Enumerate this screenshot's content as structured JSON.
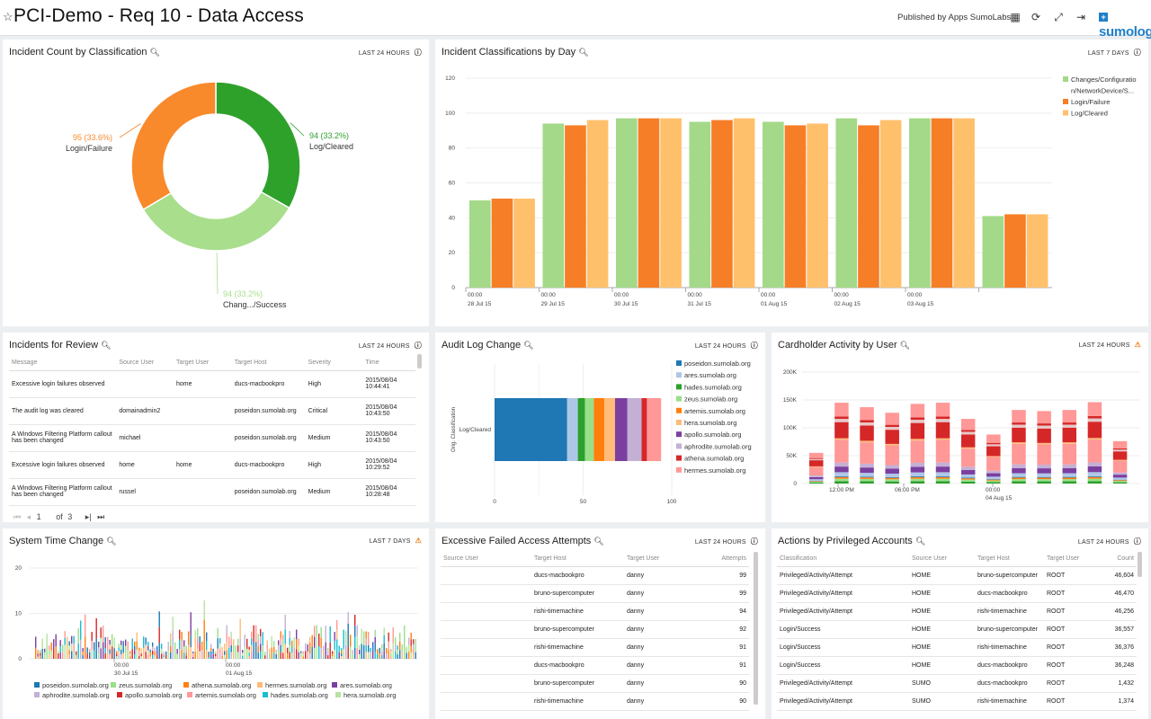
{
  "header": {
    "title": "PCI-Demo - Req 10 - Data Access",
    "published": "Published by Apps SumoLabs",
    "logo": "sumologic"
  },
  "colors": {
    "c_changes": "#a3d989",
    "c_login": "#f67e27",
    "c_logcl": "#ffc06c"
  },
  "panels": {
    "p1": {
      "title": "Incident Count by Classification",
      "range": "LAST 24 HOURS"
    },
    "p2": {
      "title": "Incident Classifications by Day",
      "range": "LAST 7 DAYS"
    },
    "p3": {
      "title": "Incidents for Review",
      "range": "LAST 24 HOURS"
    },
    "p4": {
      "title": "Audit Log Change",
      "range": "LAST 24 HOURS"
    },
    "p5": {
      "title": "Cardholder Activity by User",
      "range": "LAST 24 HOURS"
    },
    "p6": {
      "title": "System Time Change",
      "range": "LAST 7 DAYS"
    },
    "p7": {
      "title": "Excessive Failed Access Attempts",
      "range": "LAST 24 HOURS"
    },
    "p8": {
      "title": "Actions by Privileged Accounts",
      "range": "LAST 24 HOURS"
    }
  },
  "chart_data": [
    {
      "type": "pie",
      "id": "donut",
      "slices": [
        {
          "label": "Log/Cleared",
          "value": 94,
          "pct": "94 (33.2%)",
          "color": "#2ea12b"
        },
        {
          "label": "Chang.../Success",
          "value": 94,
          "pct": "94 (33.2%)",
          "color": "#a8de8c"
        },
        {
          "label": "Login/Failure",
          "value": 95,
          "pct": "95 (33.6%)",
          "color": "#f88a2c"
        }
      ]
    },
    {
      "type": "bar",
      "id": "daily",
      "categories": [
        "00:00\n28 Jul 15",
        "00:00\n29 Jul 15",
        "00:00\n30 Jul 15",
        "00:00\n31 Jul 15",
        "00:00\n01 Aug 15",
        "00:00\n02 Aug 15",
        "00:00\n03 Aug 15",
        ""
      ],
      "series": [
        {
          "name": "Changes/Configuration/NetworkDevice/S...",
          "values": [
            50,
            94,
            97,
            95,
            95,
            97,
            97,
            41
          ],
          "color": "#a3d989"
        },
        {
          "name": "Login/Failure",
          "values": [
            51,
            93,
            97,
            96,
            93,
            93,
            97,
            42
          ],
          "color": "#f67e27"
        },
        {
          "name": "Log/Cleared",
          "values": [
            51,
            96,
            97,
            97,
            94,
            96,
            97,
            42
          ],
          "color": "#ffc06c"
        }
      ],
      "legend_lines": [
        "Changes/Configuratio",
        "n/NetworkDevice/S...",
        "Login/Failure",
        "Log/Cleared"
      ],
      "yticks": [
        "0",
        "20",
        "40",
        "60",
        "80",
        "100",
        "120"
      ],
      "ylim": [
        0,
        120
      ]
    },
    {
      "type": "bar",
      "id": "audit",
      "orientation": "horizontal",
      "category": "Log/Cleared",
      "ylabel": "Orig. Classification",
      "segments": [
        {
          "name": "poseidon.sumolab.org",
          "value": 41,
          "color": "#1f77b4"
        },
        {
          "name": "ares.sumolab.org",
          "value": 6,
          "color": "#aec7e8"
        },
        {
          "name": "hades.sumolab.org",
          "value": 4,
          "color": "#2ca02c"
        },
        {
          "name": "zeus.sumolab.org",
          "value": 5,
          "color": "#98df8a"
        },
        {
          "name": "artemis.sumolab.org",
          "value": 6,
          "color": "#ff7f0e"
        },
        {
          "name": "hera.sumolab.org",
          "value": 6,
          "color": "#ffbb78"
        },
        {
          "name": "apollo.sumolab.org",
          "value": 7,
          "color": "#7b3fa0"
        },
        {
          "name": "aphrodite.sumolab.org",
          "value": 8,
          "color": "#c5b0d5"
        },
        {
          "name": "athena.sumolab.org",
          "value": 3,
          "color": "#d62728"
        },
        {
          "name": "hermes.sumolab.org",
          "value": 8,
          "color": "#ff9896"
        }
      ],
      "xticks": [
        "0",
        "50",
        "100"
      ],
      "xlim": [
        0,
        100
      ]
    },
    {
      "type": "bar",
      "id": "cardholder",
      "stacked": true,
      "totals": [
        55,
        145,
        137,
        127,
        143,
        145,
        116,
        88,
        132,
        130,
        132,
        146,
        76
      ],
      "xticks": [
        "12:00 PM",
        "06:00 PM",
        "00:00\n04 Aug 15"
      ],
      "yticks": [
        "0",
        "50K",
        "100K",
        "150K",
        "200K"
      ],
      "ylim": [
        0,
        200000
      ]
    },
    {
      "type": "bar",
      "id": "systime",
      "xticks": [
        "00:00\n30 Jul 15",
        "00:00\n01 Aug 15"
      ],
      "yticks": [
        "0",
        "10",
        "20"
      ],
      "ylim": [
        0,
        20
      ],
      "legend": [
        {
          "name": "poseidon.sumolab.org",
          "color": "#1f77b4"
        },
        {
          "name": "zeus.sumolab.org",
          "color": "#98df8a"
        },
        {
          "name": "athena.sumolab.org",
          "color": "#ff7f0e"
        },
        {
          "name": "hermes.sumolab.org",
          "color": "#ffbb78"
        },
        {
          "name": "ares.sumolab.org",
          "color": "#7b3fa0"
        },
        {
          "name": "aphrodite.sumolab.org",
          "color": "#c5b0d5"
        },
        {
          "name": "apollo.sumolab.org",
          "color": "#d62728"
        },
        {
          "name": "artemis.sumolab.org",
          "color": "#ff9896"
        },
        {
          "name": "hades.sumolab.org",
          "color": "#17becf"
        },
        {
          "name": "hera.sumolab.org",
          "color": "#b5e3a0"
        }
      ]
    }
  ],
  "incidents": {
    "headers": [
      "Message",
      "Source User",
      "Target User",
      "Target Host",
      "Severity",
      "Time"
    ],
    "rows": [
      [
        "Excessive login failures observed",
        "",
        "home",
        "ducs-macbookpro",
        "High",
        "2015/08/04 10:44:41"
      ],
      [
        "The audit log was cleared",
        "domainadmin2",
        "",
        "poseidon.sumolab.org",
        "Critical",
        "2015/08/04 10:43:50"
      ],
      [
        "A Windows Filtering Platform callout has been changed",
        "michael",
        "",
        "poseidon.sumolab.org",
        "Medium",
        "2015/08/04 10:43:50"
      ],
      [
        "Excessive login failures observed",
        "home",
        "home",
        "ducs-macbookpro",
        "High",
        "2015/08/04 10:29:52"
      ],
      [
        "A Windows Filtering Platform callout has been changed",
        "russel",
        "",
        "poseidon.sumolab.org",
        "Medium",
        "2015/08/04 10:28:48"
      ]
    ],
    "pager": {
      "page": "1",
      "of": "of",
      "total": "3"
    }
  },
  "failed": {
    "headers": [
      "Source User",
      "Target Host",
      "Target User",
      "Attempts"
    ],
    "rows": [
      [
        "",
        "ducs-macbookpro",
        "danny",
        "99"
      ],
      [
        "",
        "bruno-supercomputer",
        "danny",
        "99"
      ],
      [
        "",
        "rishi-timemachine",
        "danny",
        "94"
      ],
      [
        "",
        "bruno-supercomputer",
        "danny",
        "92"
      ],
      [
        "",
        "rishi-timemachine",
        "danny",
        "91"
      ],
      [
        "",
        "ducs-macbookpro",
        "danny",
        "91"
      ],
      [
        "",
        "bruno-supercomputer",
        "danny",
        "90"
      ],
      [
        "",
        "rishi-timemachine",
        "danny",
        "90"
      ]
    ]
  },
  "priv": {
    "headers": [
      "Classification",
      "Source User",
      "Target Host",
      "Target User",
      "Count"
    ],
    "rows": [
      [
        "Privileged/Activity/Attempt",
        "HOME",
        "bruno-supercomputer",
        "ROOT",
        "46,604"
      ],
      [
        "Privileged/Activity/Attempt",
        "HOME",
        "ducs-macbookpro",
        "ROOT",
        "46,470"
      ],
      [
        "Privileged/Activity/Attempt",
        "HOME",
        "rishi-timemachine",
        "ROOT",
        "46,256"
      ],
      [
        "Login/Success",
        "HOME",
        "bruno-supercomputer",
        "ROOT",
        "36,557"
      ],
      [
        "Login/Success",
        "HOME",
        "rishi-timemachine",
        "ROOT",
        "36,376"
      ],
      [
        "Login/Success",
        "HOME",
        "ducs-macbookpro",
        "ROOT",
        "36,248"
      ],
      [
        "Privileged/Activity/Attempt",
        "SUMO",
        "ducs-macbookpro",
        "ROOT",
        "1,432"
      ],
      [
        "Privileged/Activity/Attempt",
        "SUMO",
        "rishi-timemachine",
        "ROOT",
        "1,374"
      ]
    ]
  }
}
